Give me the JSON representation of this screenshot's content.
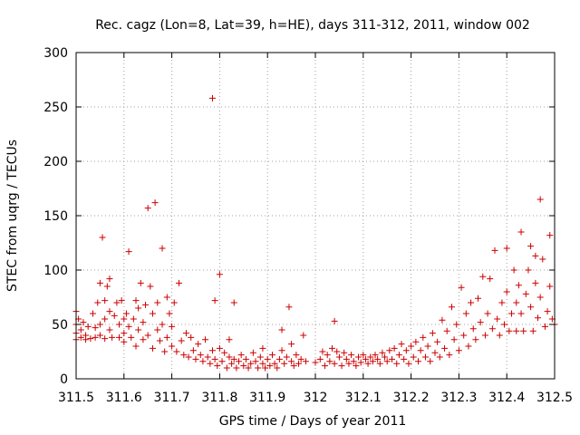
{
  "chart_data": {
    "type": "scatter",
    "title": "Rec. cagz (Lon=8, Lat=39, h=HE), days 311-312, 2011, window 002",
    "xlabel": "GPS time / Days of year 2011",
    "ylabel": "STEC from uqrg / TECUs",
    "xlim": [
      311.5,
      312.5
    ],
    "ylim": [
      0,
      300
    ],
    "xticks": [
      "311.5",
      "311.6",
      "311.7",
      "311.8",
      "311.9",
      "312",
      "312.1",
      "312.2",
      "312.3",
      "312.4",
      "312.5"
    ],
    "yticks": [
      "0",
      "50",
      "100",
      "150",
      "200",
      "250",
      "300"
    ],
    "grid": true,
    "marker": "+",
    "color": "#cc0000",
    "series": [
      {
        "name": "STEC",
        "points": [
          [
            311.5,
            62
          ],
          [
            311.5,
            50
          ],
          [
            311.5,
            42
          ],
          [
            311.5,
            36
          ],
          [
            311.505,
            55
          ],
          [
            311.51,
            45
          ],
          [
            311.51,
            38
          ],
          [
            311.515,
            52
          ],
          [
            311.52,
            40
          ],
          [
            311.52,
            36
          ],
          [
            311.525,
            48
          ],
          [
            311.53,
            37
          ],
          [
            311.535,
            60
          ],
          [
            311.54,
            47
          ],
          [
            311.54,
            38
          ],
          [
            311.545,
            70
          ],
          [
            311.55,
            88
          ],
          [
            311.55,
            50
          ],
          [
            311.55,
            40
          ],
          [
            311.555,
            130
          ],
          [
            311.56,
            72
          ],
          [
            311.56,
            55
          ],
          [
            311.56,
            37
          ],
          [
            311.565,
            85
          ],
          [
            311.57,
            92
          ],
          [
            311.57,
            62
          ],
          [
            311.57,
            45
          ],
          [
            311.575,
            38
          ],
          [
            311.58,
            58
          ],
          [
            311.585,
            70
          ],
          [
            311.59,
            50
          ],
          [
            311.59,
            38
          ],
          [
            311.595,
            72
          ],
          [
            311.6,
            55
          ],
          [
            311.6,
            42
          ],
          [
            311.6,
            34
          ],
          [
            311.605,
            60
          ],
          [
            311.61,
            117
          ],
          [
            311.61,
            48
          ],
          [
            311.615,
            38
          ],
          [
            311.62,
            55
          ],
          [
            311.625,
            72
          ],
          [
            311.625,
            30
          ],
          [
            311.63,
            65
          ],
          [
            311.63,
            45
          ],
          [
            311.635,
            88
          ],
          [
            311.64,
            52
          ],
          [
            311.64,
            36
          ],
          [
            311.645,
            68
          ],
          [
            311.65,
            157
          ],
          [
            311.65,
            40
          ],
          [
            311.655,
            85
          ],
          [
            311.66,
            60
          ],
          [
            311.66,
            28
          ],
          [
            311.665,
            162
          ],
          [
            311.67,
            70
          ],
          [
            311.67,
            45
          ],
          [
            311.675,
            35
          ],
          [
            311.68,
            120
          ],
          [
            311.68,
            50
          ],
          [
            311.685,
            25
          ],
          [
            311.69,
            75
          ],
          [
            311.69,
            38
          ],
          [
            311.695,
            60
          ],
          [
            311.7,
            30
          ],
          [
            311.7,
            48
          ],
          [
            311.705,
            70
          ],
          [
            311.71,
            25
          ],
          [
            311.715,
            88
          ],
          [
            311.72,
            35
          ],
          [
            311.725,
            22
          ],
          [
            311.73,
            42
          ],
          [
            311.735,
            20
          ],
          [
            311.74,
            38
          ],
          [
            311.745,
            26
          ],
          [
            311.75,
            18
          ],
          [
            311.755,
            32
          ],
          [
            311.76,
            22
          ],
          [
            311.765,
            16
          ],
          [
            311.77,
            36
          ],
          [
            311.775,
            20
          ],
          [
            311.78,
            14
          ],
          [
            311.785,
            258
          ],
          [
            311.785,
            26
          ],
          [
            311.79,
            72
          ],
          [
            311.79,
            18
          ],
          [
            311.795,
            12
          ],
          [
            311.8,
            96
          ],
          [
            311.8,
            28
          ],
          [
            311.805,
            16
          ],
          [
            311.81,
            24
          ],
          [
            311.815,
            10
          ],
          [
            311.82,
            36
          ],
          [
            311.82,
            20
          ],
          [
            311.825,
            14
          ],
          [
            311.83,
            70
          ],
          [
            311.83,
            18
          ],
          [
            311.835,
            10
          ],
          [
            311.84,
            16
          ],
          [
            311.845,
            22
          ],
          [
            311.85,
            12
          ],
          [
            311.855,
            18
          ],
          [
            311.86,
            10
          ],
          [
            311.865,
            14
          ],
          [
            311.87,
            24
          ],
          [
            311.875,
            16
          ],
          [
            311.88,
            10
          ],
          [
            311.885,
            20
          ],
          [
            311.89,
            28
          ],
          [
            311.89,
            14
          ],
          [
            311.895,
            10
          ],
          [
            311.9,
            18
          ],
          [
            311.905,
            12
          ],
          [
            311.91,
            22
          ],
          [
            311.915,
            14
          ],
          [
            311.92,
            10
          ],
          [
            311.925,
            18
          ],
          [
            311.93,
            45
          ],
          [
            311.93,
            26
          ],
          [
            311.935,
            14
          ],
          [
            311.94,
            20
          ],
          [
            311.945,
            66
          ],
          [
            311.95,
            32
          ],
          [
            311.95,
            16
          ],
          [
            311.955,
            12
          ],
          [
            311.96,
            22
          ],
          [
            311.965,
            14
          ],
          [
            311.97,
            18
          ],
          [
            311.975,
            40
          ],
          [
            311.98,
            16
          ],
          [
            312.0,
            15
          ],
          [
            312.01,
            18
          ],
          [
            312.015,
            25
          ],
          [
            312.02,
            12
          ],
          [
            312.025,
            22
          ],
          [
            312.03,
            16
          ],
          [
            312.035,
            28
          ],
          [
            312.04,
            53
          ],
          [
            312.04,
            14
          ],
          [
            312.045,
            25
          ],
          [
            312.05,
            20
          ],
          [
            312.055,
            12
          ],
          [
            312.06,
            24
          ],
          [
            312.065,
            18
          ],
          [
            312.07,
            14
          ],
          [
            312.075,
            22
          ],
          [
            312.08,
            16
          ],
          [
            312.085,
            12
          ],
          [
            312.09,
            20
          ],
          [
            312.095,
            15
          ],
          [
            312.1,
            22
          ],
          [
            312.105,
            18
          ],
          [
            312.11,
            14
          ],
          [
            312.115,
            20
          ],
          [
            312.12,
            16
          ],
          [
            312.125,
            22
          ],
          [
            312.13,
            18
          ],
          [
            312.135,
            14
          ],
          [
            312.14,
            24
          ],
          [
            312.145,
            20
          ],
          [
            312.15,
            16
          ],
          [
            312.155,
            26
          ],
          [
            312.16,
            18
          ],
          [
            312.165,
            28
          ],
          [
            312.17,
            14
          ],
          [
            312.175,
            22
          ],
          [
            312.18,
            32
          ],
          [
            312.185,
            18
          ],
          [
            312.19,
            26
          ],
          [
            312.195,
            14
          ],
          [
            312.2,
            30
          ],
          [
            312.205,
            20
          ],
          [
            312.21,
            34
          ],
          [
            312.215,
            16
          ],
          [
            312.22,
            26
          ],
          [
            312.225,
            38
          ],
          [
            312.23,
            20
          ],
          [
            312.235,
            30
          ],
          [
            312.24,
            16
          ],
          [
            312.245,
            42
          ],
          [
            312.25,
            24
          ],
          [
            312.255,
            34
          ],
          [
            312.26,
            20
          ],
          [
            312.265,
            54
          ],
          [
            312.27,
            28
          ],
          [
            312.275,
            44
          ],
          [
            312.28,
            22
          ],
          [
            312.285,
            66
          ],
          [
            312.29,
            36
          ],
          [
            312.295,
            50
          ],
          [
            312.3,
            26
          ],
          [
            312.305,
            84
          ],
          [
            312.31,
            40
          ],
          [
            312.315,
            60
          ],
          [
            312.32,
            30
          ],
          [
            312.325,
            70
          ],
          [
            312.33,
            46
          ],
          [
            312.335,
            36
          ],
          [
            312.34,
            74
          ],
          [
            312.345,
            52
          ],
          [
            312.35,
            94
          ],
          [
            312.355,
            40
          ],
          [
            312.36,
            60
          ],
          [
            312.365,
            92
          ],
          [
            312.37,
            46
          ],
          [
            312.375,
            118
          ],
          [
            312.38,
            55
          ],
          [
            312.385,
            40
          ],
          [
            312.39,
            70
          ],
          [
            312.395,
            50
          ],
          [
            312.4,
            120
          ],
          [
            312.4,
            80
          ],
          [
            312.405,
            44
          ],
          [
            312.41,
            60
          ],
          [
            312.415,
            100
          ],
          [
            312.42,
            70
          ],
          [
            312.42,
            44
          ],
          [
            312.425,
            86
          ],
          [
            312.43,
            135
          ],
          [
            312.43,
            60
          ],
          [
            312.435,
            44
          ],
          [
            312.44,
            78
          ],
          [
            312.445,
            100
          ],
          [
            312.45,
            122
          ],
          [
            312.45,
            66
          ],
          [
            312.455,
            44
          ],
          [
            312.46,
            88
          ],
          [
            312.46,
            113
          ],
          [
            312.465,
            56
          ],
          [
            312.47,
            165
          ],
          [
            312.47,
            75
          ],
          [
            312.475,
            110
          ],
          [
            312.48,
            48
          ],
          [
            312.485,
            62
          ],
          [
            312.49,
            132
          ],
          [
            312.49,
            85
          ],
          [
            312.495,
            55
          ],
          [
            312.5,
            50
          ]
        ]
      }
    ]
  }
}
